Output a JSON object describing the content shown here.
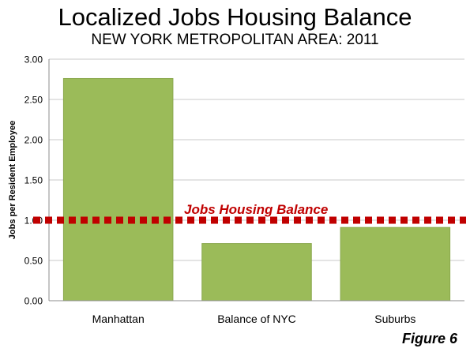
{
  "header": {
    "title": "Localized Jobs Housing Balance",
    "subtitle": "NEW YORK METROPOLITAN AREA: 2011"
  },
  "footer": {
    "figure_label": "Figure 6"
  },
  "chart_data": {
    "type": "bar",
    "categories": [
      "Manhattan",
      "Balance of NYC",
      "Suburbs"
    ],
    "values": [
      2.76,
      0.71,
      0.91
    ],
    "ylabel": "Jobs per Resident Employee",
    "xlabel": "",
    "ylim": [
      0,
      3
    ],
    "yticks": [
      "0.00",
      "0.50",
      "1.00",
      "1.50",
      "2.00",
      "2.50",
      "3.00"
    ],
    "grid": true,
    "bar_color": "#9BBB59",
    "bar_edge_color": "#8AA84D",
    "reference_line": {
      "value": 1.0,
      "label": "Jobs Housing Balance",
      "color": "#C00000",
      "style": "dotted"
    }
  }
}
